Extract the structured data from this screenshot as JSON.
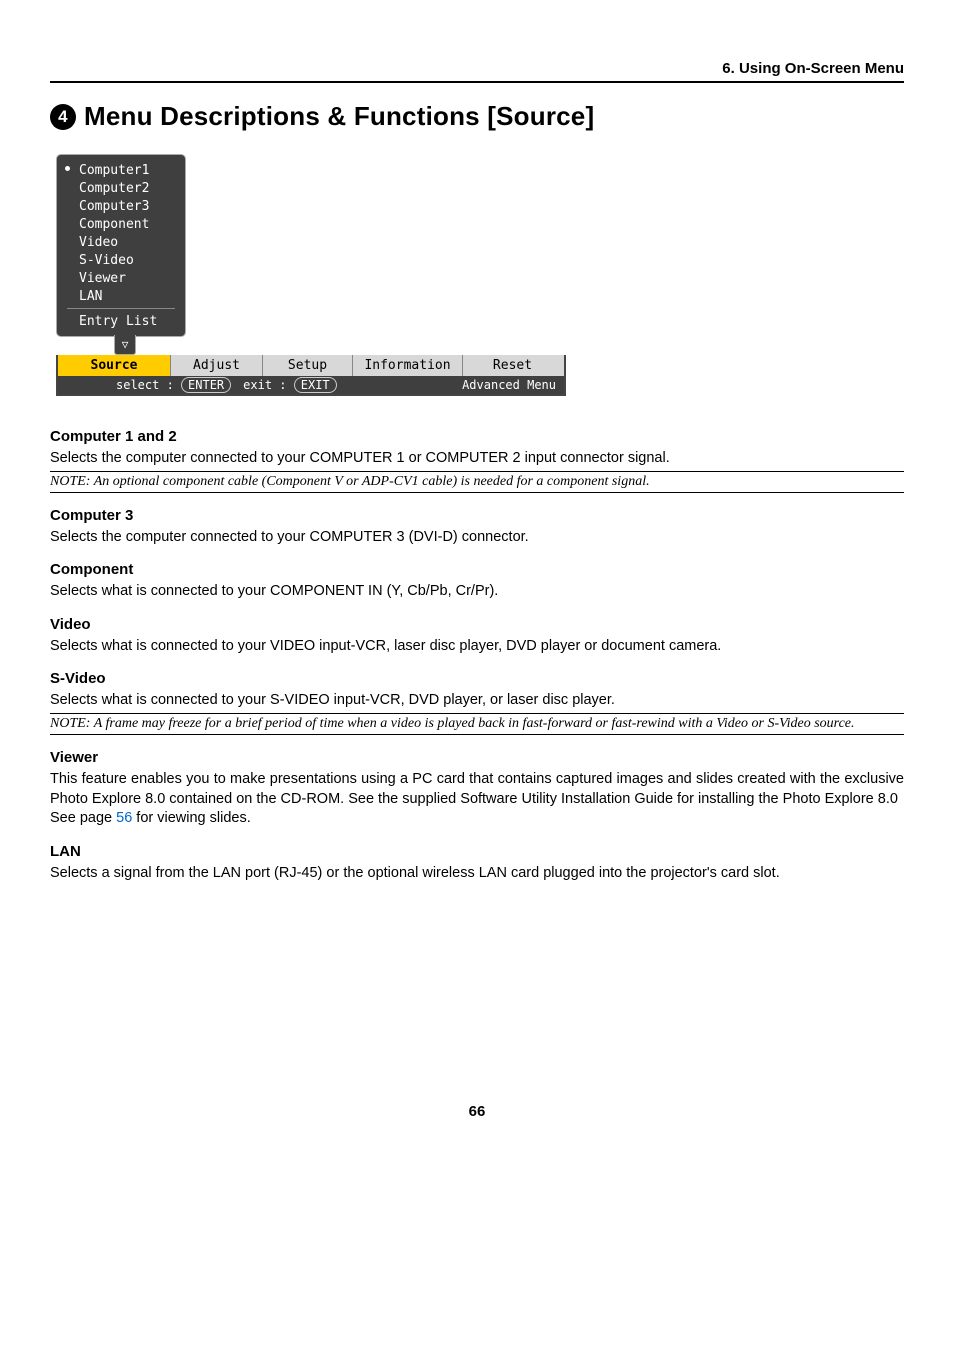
{
  "breadcrumb": "6. Using On-Screen Menu",
  "title_num": "4",
  "title_text": "Menu Descriptions & Functions [Source]",
  "osd": {
    "items": [
      "Computer1",
      "Computer2",
      "Computer3",
      "Component",
      "Video",
      "S-Video",
      "Viewer",
      "LAN"
    ],
    "entry_list": "Entry List",
    "arrow": "▽",
    "tabs": {
      "source": "Source",
      "adjust": "Adjust",
      "setup": "Setup",
      "info": "Information",
      "reset": "Reset"
    },
    "footer": {
      "select": "select :",
      "select_key": "ENTER",
      "exit": "exit :",
      "exit_key": "EXIT",
      "right": "Advanced Menu"
    },
    "colors": {
      "popup_bg": "#3f3f3f",
      "highlight": "#ffcc00",
      "tabs_bg": "#d8d8d8"
    }
  },
  "sections": {
    "c12": {
      "title": "Computer 1 and 2",
      "body": "Selects the computer connected to your COMPUTER 1 or COMPUTER 2 input connector signal.",
      "note": "NOTE: An optional component cable (Component V or ADP-CV1 cable) is needed for a component signal."
    },
    "c3": {
      "title": "Computer 3",
      "body": "Selects the computer connected to your COMPUTER 3 (DVI-D) connector."
    },
    "component": {
      "title": "Component",
      "body": "Selects what is connected to your COMPONENT IN (Y, Cb/Pb, Cr/Pr)."
    },
    "video": {
      "title": "Video",
      "body": "Selects what is connected to your VIDEO input-VCR, laser disc player, DVD player or document camera."
    },
    "svideo": {
      "title": "S-Video",
      "body": "Selects what is connected to your S-VIDEO input-VCR, DVD player, or laser disc player.",
      "note": "NOTE: A frame may freeze for a brief period of time when a video is played back in fast-forward or fast-rewind with a Video or S-Video source."
    },
    "viewer": {
      "title": "Viewer",
      "body1": "This feature enables you to make presentations using a PC card that contains captured images and slides created with the exclusive Photo Explore 8.0 contained on the CD-ROM. See the supplied Software Utility Installation Guide for installing the Photo Explore 8.0",
      "body2a": "See page ",
      "page_ref": "56",
      "body2b": " for viewing slides."
    },
    "lan": {
      "title": "LAN",
      "body": "Selects a signal from the LAN port (RJ-45) or the optional wireless LAN card plugged into the projector's card slot."
    }
  },
  "page_number": "66"
}
